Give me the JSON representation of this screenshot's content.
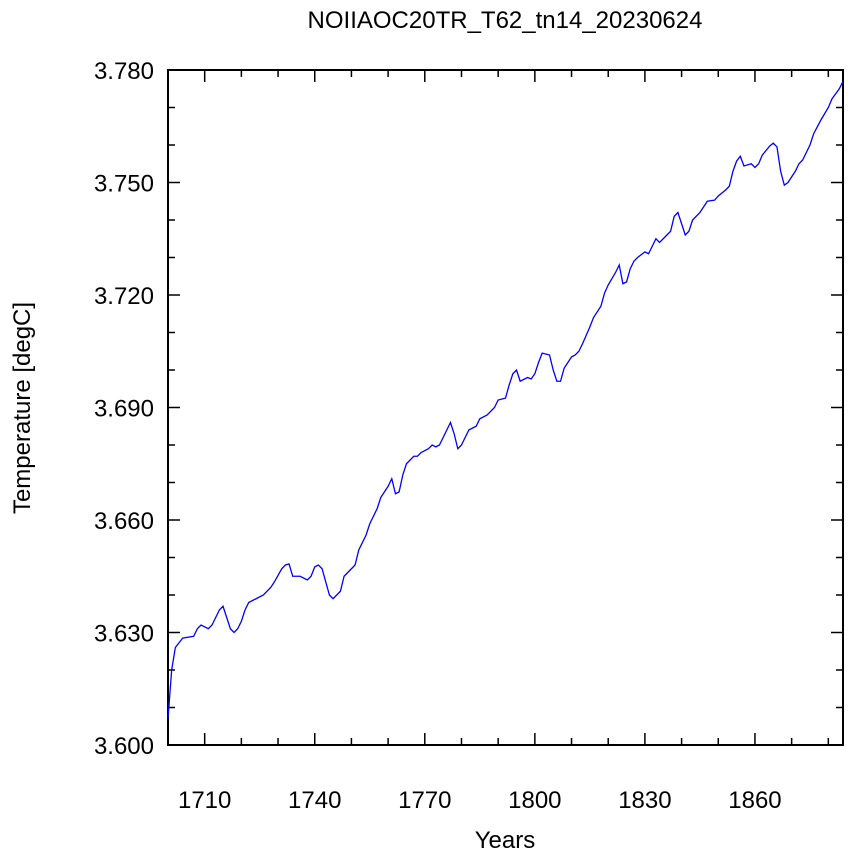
{
  "chart_data": {
    "type": "line",
    "title": "NOIIAOC20TR_T62_tn14_20230624",
    "x_label": "Years",
    "y_label": "Temperature [degC]",
    "x": [
      1700,
      1701,
      1702,
      1704,
      1707,
      1708,
      1709,
      1711,
      1712,
      1714,
      1715,
      1716,
      1717,
      1718,
      1719,
      1720,
      1721,
      1722,
      1724,
      1726,
      1728,
      1729,
      1731,
      1732,
      1733,
      1734,
      1736,
      1738,
      1739,
      1740,
      1741,
      1742,
      1744,
      1745,
      1747,
      1748,
      1749,
      1751,
      1752,
      1754,
      1755,
      1757,
      1758,
      1760,
      1761,
      1762,
      1763,
      1764,
      1765,
      1767,
      1768,
      1769,
      1771,
      1772,
      1773,
      1774,
      1776,
      1777,
      1778,
      1779,
      1780,
      1782,
      1784,
      1785,
      1787,
      1789,
      1790,
      1792,
      1793,
      1794,
      1795,
      1796,
      1798,
      1799,
      1800,
      1801,
      1802,
      1804,
      1805,
      1806,
      1807,
      1808,
      1810,
      1811,
      1812,
      1813,
      1815,
      1816,
      1818,
      1819,
      1820,
      1822,
      1823,
      1824,
      1825,
      1826,
      1827,
      1828,
      1830,
      1831,
      1832,
      1833,
      1834,
      1835,
      1837,
      1838,
      1839,
      1840,
      1841,
      1842,
      1843,
      1845,
      1846,
      1847,
      1849,
      1850,
      1852,
      1853,
      1854,
      1855,
      1856,
      1857,
      1859,
      1860,
      1861,
      1862,
      1864,
      1865,
      1866,
      1867,
      1868,
      1869,
      1871,
      1872,
      1873,
      1875,
      1876,
      1878,
      1880,
      1881,
      1883,
      1884
    ],
    "series": [
      {
        "name": "Temperature",
        "color": "#0000ff",
        "values": [
          3.607,
          3.62,
          3.626,
          3.6285,
          3.629,
          3.631,
          3.632,
          3.631,
          3.632,
          3.636,
          3.637,
          3.634,
          3.631,
          3.63,
          3.631,
          3.633,
          3.636,
          3.638,
          3.639,
          3.64,
          3.642,
          3.6435,
          3.647,
          3.648,
          3.6483,
          3.645,
          3.645,
          3.644,
          3.645,
          3.6475,
          3.648,
          3.647,
          3.64,
          3.639,
          3.641,
          3.645,
          3.646,
          3.648,
          3.652,
          3.656,
          3.659,
          3.663,
          3.666,
          3.669,
          3.671,
          3.667,
          3.6675,
          3.672,
          3.675,
          3.677,
          3.677,
          3.678,
          3.679,
          3.68,
          3.6795,
          3.68,
          3.684,
          3.686,
          3.683,
          3.679,
          3.68,
          3.684,
          3.685,
          3.687,
          3.688,
          3.69,
          3.692,
          3.6925,
          3.696,
          3.699,
          3.7,
          3.697,
          3.698,
          3.6976,
          3.699,
          3.702,
          3.7045,
          3.704,
          3.7,
          3.697,
          3.697,
          3.7005,
          3.7035,
          3.704,
          3.705,
          3.707,
          3.7115,
          3.714,
          3.717,
          3.7205,
          3.7227,
          3.726,
          3.728,
          3.723,
          3.7235,
          3.727,
          3.729,
          3.73,
          3.7315,
          3.731,
          3.733,
          3.735,
          3.734,
          3.735,
          3.737,
          3.741,
          3.742,
          3.739,
          3.736,
          3.737,
          3.74,
          3.742,
          3.7435,
          3.745,
          3.7453,
          3.7464,
          3.748,
          3.749,
          3.753,
          3.7557,
          3.757,
          3.7544,
          3.755,
          3.754,
          3.755,
          3.7573,
          3.7597,
          3.7605,
          3.7595,
          3.753,
          3.7493,
          3.75,
          3.753,
          3.755,
          3.756,
          3.76,
          3.763,
          3.7667,
          3.77,
          3.7723,
          3.775,
          3.777
        ]
      }
    ],
    "xlim": [
      1700,
      1884
    ],
    "xticks": [
      1710,
      1740,
      1770,
      1800,
      1830,
      1860
    ],
    "xminorticks": [
      1700,
      1720,
      1730,
      1750,
      1760,
      1780,
      1790,
      1810,
      1820,
      1840,
      1850,
      1870,
      1880
    ],
    "ylim": [
      3.6,
      3.78
    ],
    "yticks": [
      {
        "value": 3.6,
        "label": "3.600"
      },
      {
        "value": 3.63,
        "label": "3.630"
      },
      {
        "value": 3.66,
        "label": "3.660"
      },
      {
        "value": 3.69,
        "label": "3.690"
      },
      {
        "value": 3.72,
        "label": "3.720"
      },
      {
        "value": 3.75,
        "label": "3.750"
      },
      {
        "value": 3.78,
        "label": "3.780"
      }
    ],
    "yminorticks": [
      3.61,
      3.62,
      3.64,
      3.65,
      3.67,
      3.68,
      3.7,
      3.71,
      3.73,
      3.74,
      3.76,
      3.77
    ]
  }
}
